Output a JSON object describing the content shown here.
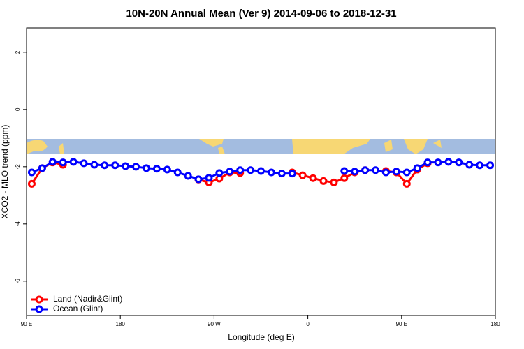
{
  "chart_data": {
    "type": "line",
    "title": "10N-20N Annual Mean (Ver 9)   2014-09-06 to 2018-12-31",
    "x_label": "Longitude (deg E)",
    "y_label": "XCO2 - MLO trend (ppm)",
    "x": [
      95,
      105,
      115,
      125,
      135,
      145,
      155,
      165,
      175,
      185,
      195,
      205,
      215,
      225,
      235,
      245,
      255,
      265,
      275,
      285,
      295,
      305,
      315,
      325,
      335,
      345,
      355,
      365,
      375,
      385,
      395,
      405,
      415,
      425,
      435,
      445,
      455,
      465,
      475,
      485,
      495,
      505,
      515,
      525,
      535
    ],
    "xlim": [
      90,
      540
    ],
    "xticks": [
      {
        "value": 90,
        "label": "90 E"
      },
      180,
      {
        "value": 270,
        "label": "90 W"
      },
      {
        "value": 360,
        "label": "0"
      },
      {
        "value": 450,
        "label": "90 E"
      },
      {
        "value": 540,
        "label": "180"
      }
    ],
    "ylim": [
      -7.2,
      2.85
    ],
    "yticks": [
      -6,
      -4,
      -2,
      0,
      2
    ],
    "legend": "bottom-left",
    "series": [
      {
        "name": "Land (Nadir&Glint)",
        "color": "#ff0000",
        "values": [
          -2.6,
          -2.05,
          -1.85,
          -1.93,
          null,
          null,
          null,
          null,
          null,
          null,
          null,
          null,
          null,
          null,
          null,
          null,
          -2.45,
          -2.55,
          -2.42,
          -2.2,
          -2.22,
          null,
          null,
          null,
          null,
          -2.2,
          -2.3,
          -2.4,
          -2.5,
          -2.55,
          -2.4,
          -2.2,
          -2.12,
          null,
          -2.15,
          -2.2,
          -2.6,
          -2.1,
          -1.88,
          null,
          null,
          null,
          null,
          null,
          null
        ]
      },
      {
        "name": "Ocean (Glint)",
        "color": "#0000ff",
        "values": [
          -2.2,
          -2.05,
          -1.83,
          -1.85,
          -1.83,
          -1.88,
          -1.93,
          -1.95,
          -1.95,
          -1.98,
          -2.0,
          -2.05,
          -2.07,
          -2.1,
          -2.2,
          -2.32,
          -2.44,
          -2.39,
          -2.22,
          -2.17,
          -2.12,
          -2.12,
          -2.15,
          -2.2,
          -2.24,
          -2.24,
          null,
          null,
          null,
          null,
          -2.15,
          -2.17,
          -2.12,
          -2.12,
          -2.2,
          -2.17,
          -2.2,
          -2.05,
          -1.85,
          -1.85,
          -1.83,
          -1.85,
          -1.93,
          -1.95,
          -1.95
        ]
      }
    ]
  }
}
